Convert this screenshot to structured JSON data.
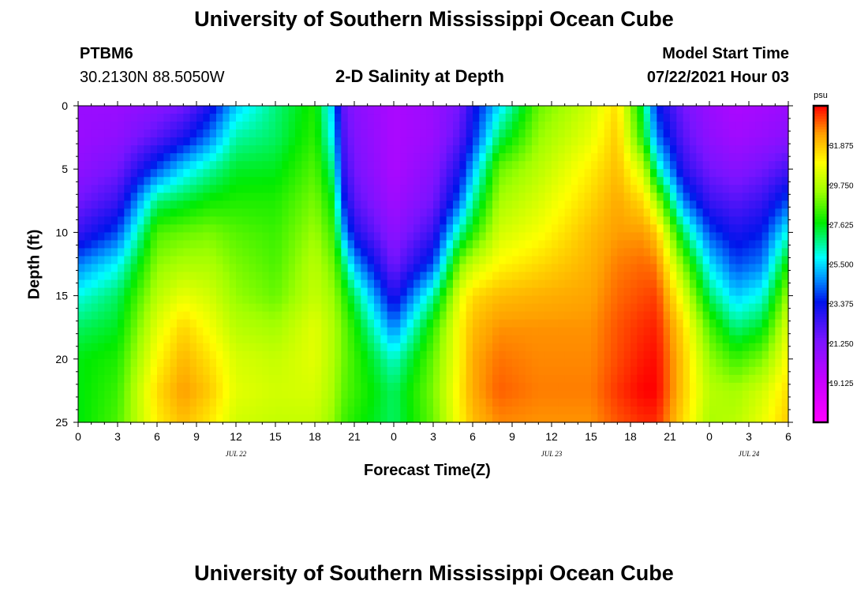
{
  "page_title": "University of Southern Mississippi Ocean Cube",
  "footer_title": "University of Southern Mississippi Ocean Cube",
  "station": {
    "id": "PTBM6",
    "coords": "30.2130N  88.5050W"
  },
  "model": {
    "label": "Model Start Time",
    "value": "07/22/2021 Hour 03"
  },
  "chart_data": {
    "type": "heatmap",
    "title": "2-D Salinity at Depth",
    "xlabel": "Forecast Time(Z)",
    "ylabel": "Depth (ft)",
    "x_hours": [
      0,
      54
    ],
    "ylim": [
      25,
      0
    ],
    "xticks": [
      {
        "h": 0,
        "label": "0"
      },
      {
        "h": 3,
        "label": "3"
      },
      {
        "h": 6,
        "label": "6"
      },
      {
        "h": 9,
        "label": "9"
      },
      {
        "h": 12,
        "label": "12"
      },
      {
        "h": 15,
        "label": "15"
      },
      {
        "h": 18,
        "label": "18"
      },
      {
        "h": 21,
        "label": "21"
      },
      {
        "h": 24,
        "label": "0"
      },
      {
        "h": 27,
        "label": "3"
      },
      {
        "h": 30,
        "label": "6"
      },
      {
        "h": 33,
        "label": "9"
      },
      {
        "h": 36,
        "label": "12"
      },
      {
        "h": 39,
        "label": "15"
      },
      {
        "h": 42,
        "label": "18"
      },
      {
        "h": 45,
        "label": "21"
      },
      {
        "h": 48,
        "label": "0"
      },
      {
        "h": 51,
        "label": "3"
      },
      {
        "h": 54,
        "label": "6"
      }
    ],
    "date_labels": [
      {
        "h": 12,
        "label": "JUL 22"
      },
      {
        "h": 36,
        "label": "JUL 23"
      },
      {
        "h": 51,
        "label": "JUL 24"
      }
    ],
    "yticks": [
      0,
      5,
      10,
      15,
      20,
      25
    ],
    "colorbar": {
      "unit": "psu",
      "min": 17.0,
      "max": 34.0,
      "ticks": [
        "31.875",
        "29.750",
        "27.625",
        "25.500",
        "23.375",
        "21.250",
        "19.125"
      ]
    },
    "depths": [
      0,
      2.5,
      5,
      7.5,
      10,
      12.5,
      15,
      17.5,
      20,
      22.5,
      25
    ],
    "series": [
      {
        "h": 0,
        "values": [
          20.5,
          20.5,
          20.8,
          21.5,
          22.5,
          24.5,
          26.0,
          27.0,
          27.6,
          27.6,
          27.6
        ]
      },
      {
        "h": 3,
        "values": [
          20.5,
          20.8,
          21.5,
          22.5,
          24.0,
          25.8,
          27.0,
          27.5,
          28.0,
          28.3,
          28.5
        ]
      },
      {
        "h": 6,
        "values": [
          21.0,
          22.0,
          24.0,
          26.8,
          28.5,
          29.2,
          29.8,
          30.5,
          31.0,
          31.5,
          31.2
        ]
      },
      {
        "h": 8,
        "values": [
          21.5,
          23.0,
          25.5,
          27.3,
          28.8,
          29.6,
          30.6,
          31.6,
          32.1,
          32.5,
          32.0
        ]
      },
      {
        "h": 10,
        "values": [
          23.0,
          24.5,
          26.5,
          27.8,
          29.0,
          29.6,
          30.2,
          30.8,
          31.4,
          31.8,
          31.3
        ]
      },
      {
        "h": 12,
        "values": [
          25.3,
          26.5,
          27.4,
          28.0,
          28.6,
          29.0,
          29.3,
          29.8,
          30.3,
          30.5,
          30.2
        ]
      },
      {
        "h": 15,
        "values": [
          26.8,
          27.0,
          27.5,
          28.0,
          28.3,
          28.5,
          28.8,
          29.5,
          30.0,
          30.2,
          30.0
        ]
      },
      {
        "h": 18,
        "values": [
          28.0,
          28.2,
          28.6,
          29.0,
          29.4,
          29.8,
          30.0,
          30.5,
          30.5,
          30.3,
          30.0
        ]
      },
      {
        "h": 19.5,
        "values": [
          25.0,
          25.5,
          26.5,
          27.5,
          28.2,
          28.8,
          29.3,
          29.6,
          29.6,
          29.5,
          29.2
        ]
      },
      {
        "h": 20,
        "values": [
          22.0,
          22.5,
          23.0,
          24.0,
          25.5,
          27.5,
          28.5,
          29.0,
          29.0,
          28.8,
          28.5
        ]
      },
      {
        "h": 21,
        "values": [
          21.0,
          21.2,
          21.5,
          22.0,
          23.0,
          25.0,
          27.0,
          28.0,
          28.3,
          28.3,
          28.0
        ]
      },
      {
        "h": 24,
        "values": [
          20.0,
          20.0,
          20.0,
          20.3,
          20.8,
          21.5,
          22.8,
          24.5,
          26.2,
          27.0,
          27.0
        ]
      },
      {
        "h": 27,
        "values": [
          20.5,
          20.5,
          21.0,
          21.5,
          22.5,
          24.0,
          26.5,
          28.2,
          28.8,
          29.0,
          28.8
        ]
      },
      {
        "h": 29,
        "values": [
          21.5,
          22.0,
          23.0,
          24.2,
          26.5,
          29.0,
          30.5,
          31.0,
          31.0,
          31.2,
          31.0
        ]
      },
      {
        "h": 30,
        "values": [
          23.0,
          23.5,
          25.0,
          26.5,
          28.0,
          30.0,
          31.5,
          32.0,
          32.3,
          32.3,
          32.0
        ]
      },
      {
        "h": 32,
        "values": [
          25.5,
          27.0,
          28.8,
          29.5,
          30.2,
          31.0,
          32.0,
          32.6,
          32.9,
          33.1,
          32.7
        ]
      },
      {
        "h": 35,
        "values": [
          28.8,
          29.3,
          29.8,
          30.3,
          30.8,
          31.5,
          32.2,
          32.6,
          32.7,
          32.8,
          32.6
        ]
      },
      {
        "h": 39,
        "values": [
          30.2,
          30.6,
          31.2,
          31.6,
          32.0,
          32.2,
          32.4,
          32.6,
          32.7,
          32.8,
          32.6
        ]
      },
      {
        "h": 41,
        "values": [
          31.5,
          31.8,
          32.0,
          32.3,
          32.5,
          32.8,
          33.0,
          33.2,
          33.3,
          33.5,
          33.2
        ]
      },
      {
        "h": 43,
        "values": [
          27.0,
          27.8,
          30.0,
          31.5,
          32.5,
          33.0,
          33.3,
          33.6,
          33.8,
          34.0,
          33.6
        ]
      },
      {
        "h": 44,
        "values": [
          23.5,
          24.5,
          26.5,
          29.5,
          31.8,
          32.8,
          33.4,
          33.7,
          33.9,
          34.0,
          33.6
        ]
      },
      {
        "h": 46,
        "values": [
          21.5,
          22.0,
          22.8,
          24.5,
          27.0,
          29.0,
          30.5,
          31.5,
          31.8,
          31.8,
          31.5
        ]
      },
      {
        "h": 48,
        "values": [
          20.5,
          20.8,
          21.5,
          22.5,
          24.0,
          25.6,
          27.0,
          28.5,
          29.3,
          29.8,
          29.6
        ]
      },
      {
        "h": 50,
        "values": [
          20.0,
          20.3,
          21.0,
          22.0,
          23.0,
          24.0,
          25.3,
          26.8,
          28.3,
          29.5,
          29.8
        ]
      },
      {
        "h": 52,
        "values": [
          20.2,
          20.6,
          21.5,
          22.5,
          23.5,
          24.5,
          26.0,
          27.5,
          29.0,
          30.2,
          30.6
        ]
      },
      {
        "h": 54,
        "values": [
          20.5,
          21.0,
          22.3,
          24.0,
          26.0,
          28.0,
          29.5,
          30.5,
          31.0,
          31.5,
          31.8
        ]
      }
    ]
  }
}
